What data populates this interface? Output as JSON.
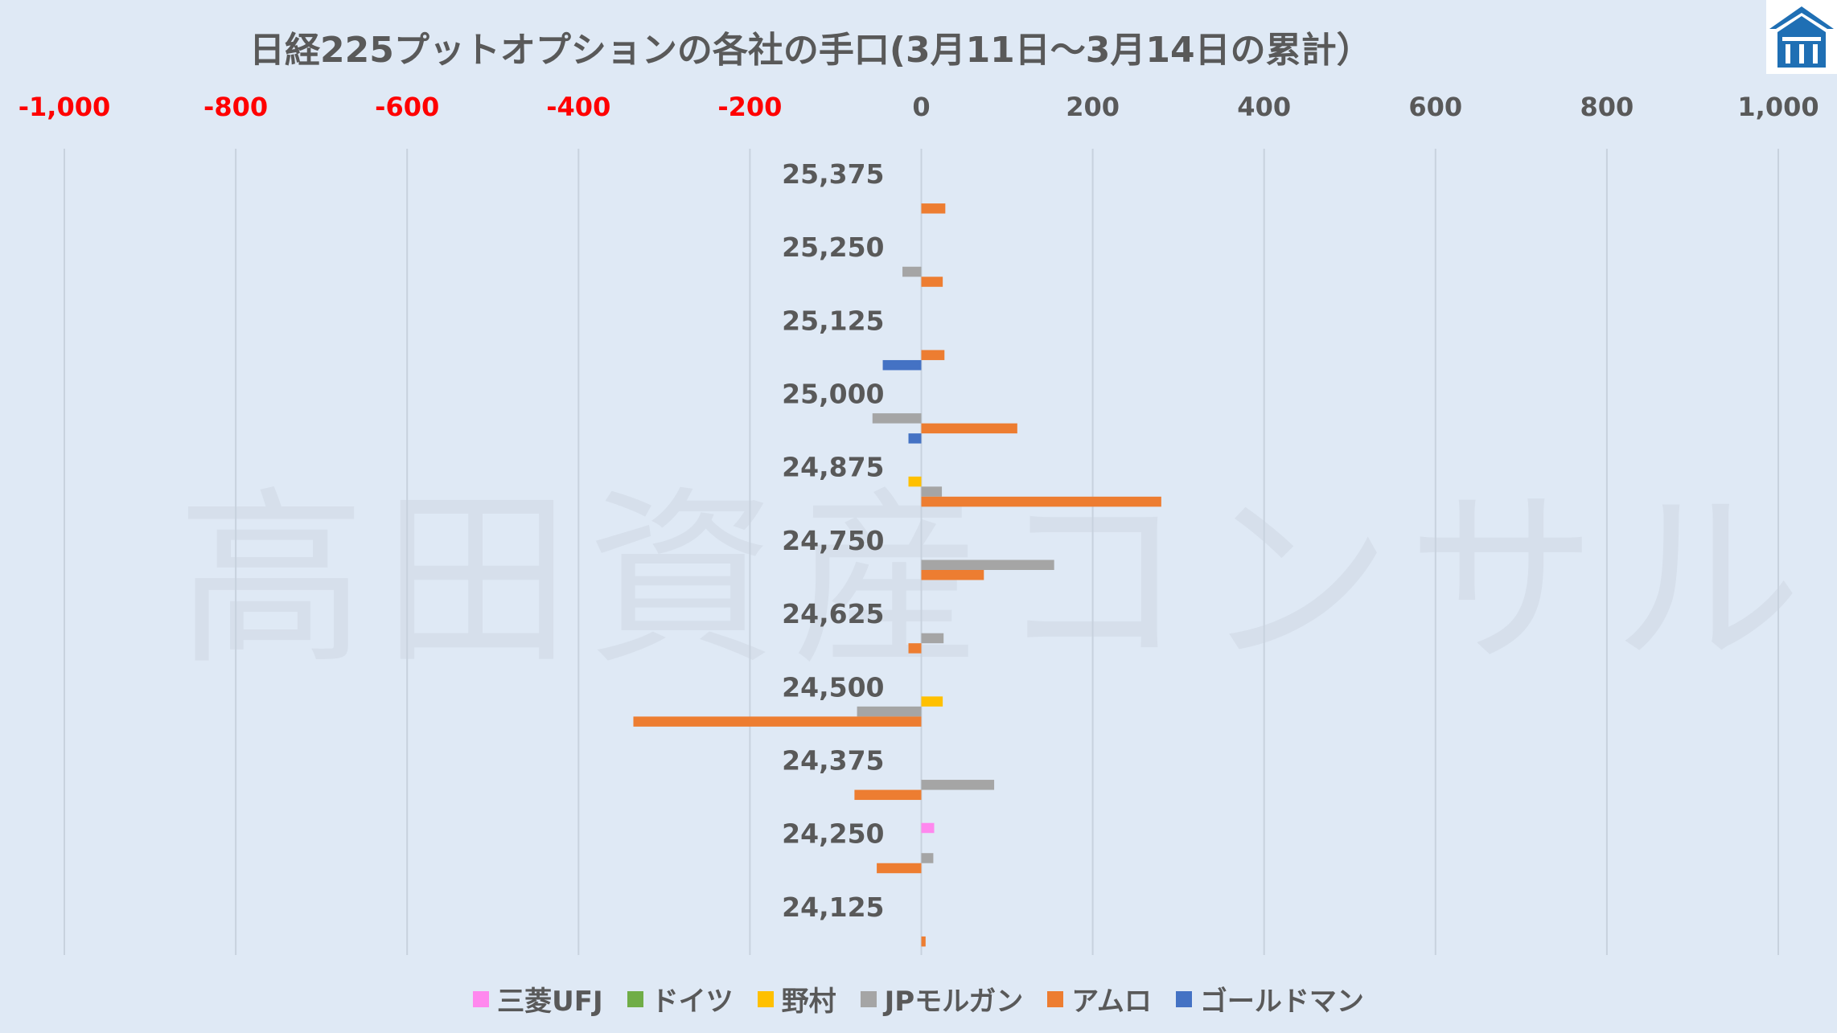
{
  "watermark": "高田資産コンサル",
  "chart_data": {
    "type": "bar",
    "orientation": "horizontal",
    "title": "日経225プットオプションの各社の手口(3月11日～3月14日の累計）",
    "xlim": [
      -1000,
      1000
    ],
    "x_ticks": [
      "-1,000",
      "-800",
      "-600",
      "-400",
      "-200",
      "0",
      "200",
      "400",
      "600",
      "800",
      "1,000"
    ],
    "x_tick_values": [
      -1000,
      -800,
      -600,
      -400,
      -200,
      0,
      200,
      400,
      600,
      800,
      1000
    ],
    "negative_tick_color": "#ff0000",
    "positive_tick_color": "#595959",
    "grid": true,
    "legend_position": "bottom",
    "categories": [
      "25,375",
      "25,250",
      "25,125",
      "25,000",
      "24,875",
      "24,750",
      "24,625",
      "24,500",
      "24,375",
      "24,250",
      "24,125"
    ],
    "series": [
      {
        "name": "三菱UFJ",
        "color": "#ff88ee",
        "values": [
          0,
          0,
          0,
          0,
          0,
          0,
          0,
          0,
          0,
          15,
          0
        ]
      },
      {
        "name": "ドイツ",
        "color": "#70ad47",
        "values": [
          0,
          0,
          0,
          0,
          0,
          0,
          0,
          0,
          0,
          0,
          0
        ]
      },
      {
        "name": "野村",
        "color": "#ffc000",
        "values": [
          0,
          0,
          0,
          0,
          -15,
          0,
          0,
          25,
          0,
          0,
          0
        ]
      },
      {
        "name": "JPモルガン",
        "color": "#a5a5a5",
        "values": [
          0,
          -22,
          0,
          -57,
          24,
          155,
          26,
          -75,
          85,
          14,
          0
        ]
      },
      {
        "name": "アムロ",
        "color": "#ed7d31",
        "values": [
          28,
          25,
          27,
          112,
          280,
          73,
          -15,
          -336,
          -78,
          -52,
          5
        ]
      },
      {
        "name": "ゴールドマン",
        "color": "#4472c4",
        "values": [
          0,
          0,
          -45,
          -15,
          0,
          0,
          0,
          0,
          0,
          0,
          0
        ]
      }
    ]
  }
}
